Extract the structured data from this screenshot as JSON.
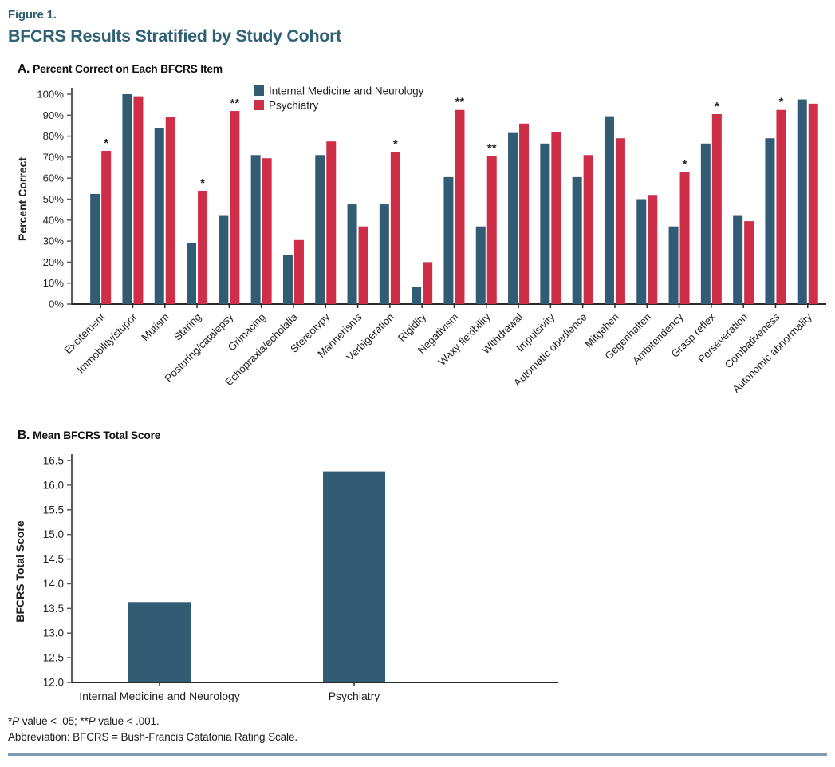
{
  "figure": {
    "label": "Figure 1.",
    "title": "BFCRS Results Stratified by Study Cohort"
  },
  "colors": {
    "internal_medicine_blue": "#325b74",
    "psychiatry_red": "#cf2e48",
    "title_teal": "#2e6173",
    "axis_dark": "#2b2b2b",
    "axis_gray": "#5a5b5e",
    "bottom_rule_blue": "#7e9cb3"
  },
  "panel_a": {
    "label_prefix": "A.",
    "title": "Percent Correct on Each BFCRS Item",
    "ylabel": "Percent Correct"
  },
  "panel_b": {
    "label_prefix": "B.",
    "title": "Mean BFCRS Total Score",
    "ylabel": "BFCRS Total Score"
  },
  "chart_data": [
    {
      "id": "panel-a",
      "type": "bar",
      "title": "Percent Correct on Each BFCRS Item",
      "xlabel": "",
      "ylabel": "Percent Correct",
      "ylim": [
        0,
        100
      ],
      "yticks": [
        0,
        10,
        20,
        30,
        40,
        50,
        60,
        70,
        80,
        90,
        100
      ],
      "ytick_format": "percent",
      "grid": false,
      "legend_position": "top-inside",
      "categories": [
        "Excitement",
        "Immobility/stupor",
        "Mutism",
        "Staring",
        "Posturing/catalepsy",
        "Grimacing",
        "Echopraxia/echolalia",
        "Stereotypy",
        "Mannerisms",
        "Verbigeration",
        "Rigidity",
        "Negativism",
        "Waxy flexibility",
        "Withdrawal",
        "Impulsivity",
        "Automatic obedience",
        "Mitgehen",
        "Gegenhalten",
        "Ambitendency",
        "Grasp reflex",
        "Perseveration",
        "Combativeness",
        "Autonomic abnormality"
      ],
      "series": [
        {
          "name": "Internal Medicine and Neurology",
          "color": "#325b74",
          "values": [
            52.5,
            100,
            84,
            29,
            42,
            71,
            23.5,
            71,
            47.5,
            47.5,
            8,
            60.5,
            37,
            81.5,
            76.5,
            60.5,
            89.5,
            50,
            37,
            76.5,
            42,
            79,
            97.5
          ]
        },
        {
          "name": "Psychiatry",
          "color": "#cf2e48",
          "values": [
            73,
            99,
            89,
            54,
            92,
            69.5,
            30.5,
            77.5,
            37,
            72.5,
            20,
            92.5,
            70.5,
            86,
            82,
            71,
            79,
            52,
            63,
            90.5,
            39.5,
            92.5,
            95.5
          ]
        }
      ],
      "significance": [
        "*",
        "",
        "",
        "*",
        "**",
        "",
        "",
        "",
        "",
        "*",
        "",
        "**",
        "**",
        "",
        "",
        "",
        "",
        "",
        "*",
        "*",
        "",
        "*",
        ""
      ]
    },
    {
      "id": "panel-b",
      "type": "bar",
      "title": "Mean BFCRS Total Score",
      "xlabel": "",
      "ylabel": "BFCRS Total Score",
      "ylim": [
        12,
        16.5
      ],
      "yticks": [
        12.0,
        12.5,
        13.0,
        13.5,
        14.0,
        14.5,
        15.0,
        15.5,
        16.0,
        16.5
      ],
      "grid": false,
      "categories": [
        "Internal Medicine and Neurology",
        "Psychiatry"
      ],
      "values": [
        13.63,
        16.28
      ],
      "bar_color": "#325b74"
    }
  ],
  "footnotes": {
    "significance_text": "*P value < .05; **P value < .001.",
    "significance_parts": [
      {
        "text": "*",
        "italic": false
      },
      {
        "text": "P",
        "italic": true
      },
      {
        "text": " value < .05; **",
        "italic": false
      },
      {
        "text": "P",
        "italic": true
      },
      {
        "text": " value < .001.",
        "italic": false
      }
    ],
    "abbreviation": "Abbreviation: BFCRS = Bush-Francis Catatonia Rating Scale."
  }
}
